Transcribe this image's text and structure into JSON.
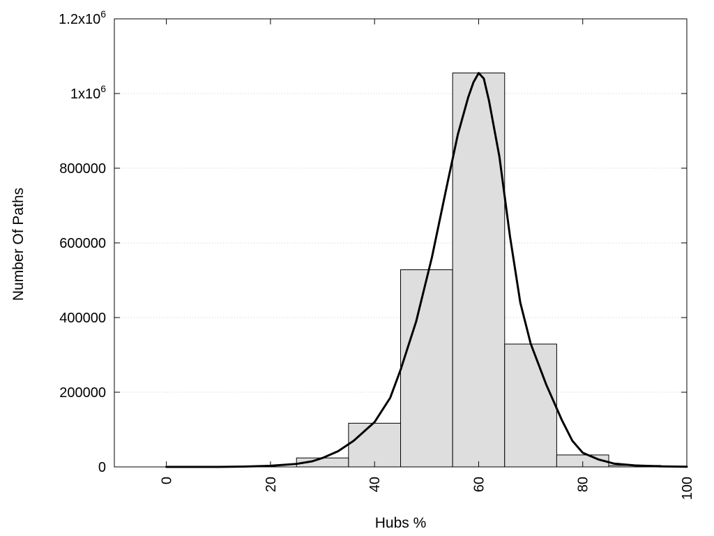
{
  "chart_data": {
    "type": "bar",
    "xlabel": "Hubs %",
    "ylabel": "Number Of Paths",
    "xlim": [
      -10,
      100
    ],
    "ylim": [
      0,
      1200000
    ],
    "x_ticks": [
      0,
      20,
      40,
      60,
      80,
      100
    ],
    "y_ticks": [
      {
        "value": 0,
        "label": "0"
      },
      {
        "value": 200000,
        "label": "200000"
      },
      {
        "value": 400000,
        "label": "400000"
      },
      {
        "value": 600000,
        "label": "600000"
      },
      {
        "value": 800000,
        "label": "800000"
      },
      {
        "value": 1000000,
        "label": "1x10",
        "exp": "6"
      },
      {
        "value": 1200000,
        "label": "1.2x10",
        "exp": "6"
      }
    ],
    "grid": "horizontal dotted",
    "bar_width": 10,
    "bars": [
      {
        "x": 30,
        "value": 24000
      },
      {
        "x": 40,
        "value": 117000
      },
      {
        "x": 50,
        "value": 528000
      },
      {
        "x": 60,
        "value": 1055000
      },
      {
        "x": 70,
        "value": 329000
      },
      {
        "x": 80,
        "value": 32000
      },
      {
        "x": 90,
        "value": 4000
      }
    ],
    "curve": {
      "x": [
        0,
        10,
        15,
        20,
        25,
        28,
        30,
        33,
        36,
        40,
        43,
        45,
        48,
        51,
        54,
        56,
        58,
        59,
        60,
        61,
        62,
        64,
        66,
        68,
        70,
        73,
        76,
        78,
        80,
        83,
        86,
        90,
        95,
        100
      ],
      "y": [
        0,
        0,
        1000,
        3000,
        8000,
        15000,
        24000,
        42000,
        70000,
        120000,
        185000,
        260000,
        390000,
        560000,
        760000,
        890000,
        990000,
        1030000,
        1055000,
        1040000,
        980000,
        830000,
        620000,
        440000,
        330000,
        220000,
        125000,
        70000,
        38000,
        20000,
        9000,
        4000,
        1500,
        500
      ]
    },
    "colors": {
      "bar_fill": "#dedede",
      "bar_stroke": "#000000",
      "curve": "#000000",
      "grid": "#c8c8c8"
    }
  }
}
